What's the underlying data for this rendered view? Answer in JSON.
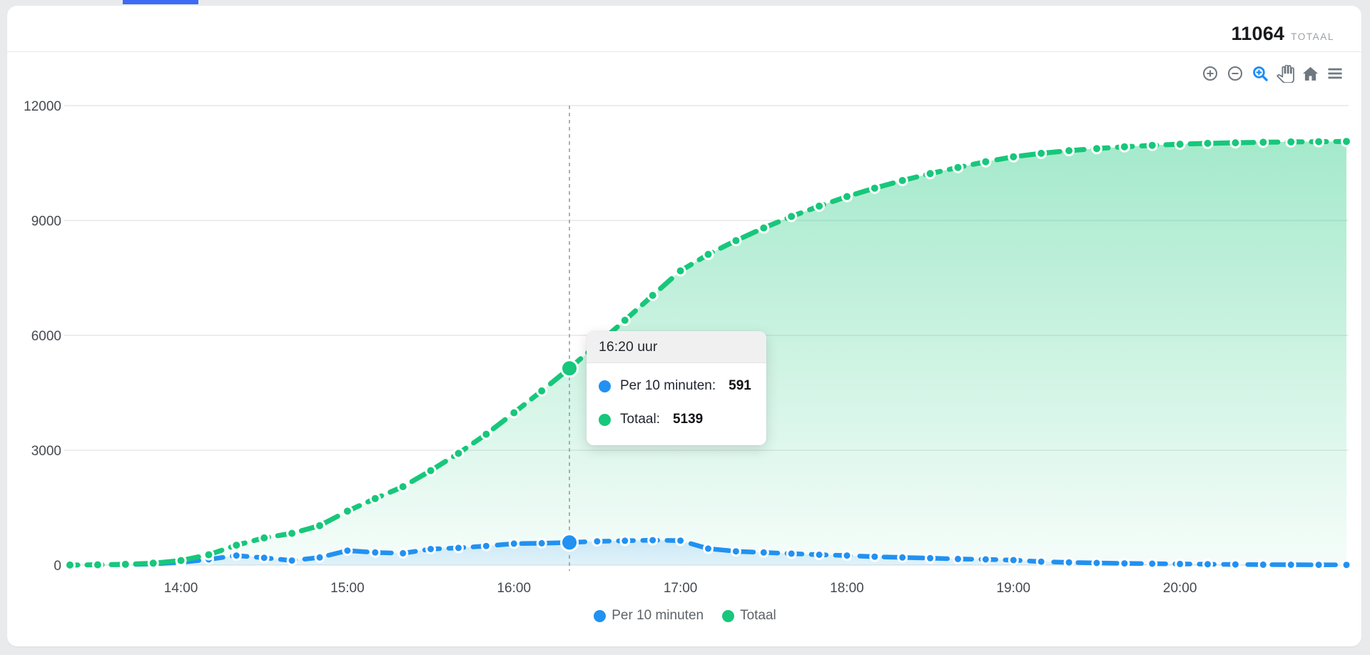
{
  "header": {
    "total_value": "11064",
    "total_label": "TOTAAL"
  },
  "toolbar": {
    "active_color": "#1a8cf8",
    "idle_color": "#6f7780"
  },
  "tooltip": {
    "title": "16:20 uur",
    "rows": [
      {
        "label": "Per 10 minuten:",
        "value": "591",
        "color": "#2191f2"
      },
      {
        "label": "Totaal:",
        "value": "5139",
        "color": "#17c77b"
      }
    ]
  },
  "legend": {
    "items": [
      {
        "label": "Per 10 minuten",
        "color": "#2191f2"
      },
      {
        "label": "Totaal",
        "color": "#17c77b"
      }
    ]
  },
  "chart_data": {
    "type": "area",
    "x": [
      "13:20",
      "13:30",
      "13:40",
      "13:50",
      "14:00",
      "14:10",
      "14:20",
      "14:30",
      "14:40",
      "14:50",
      "15:00",
      "15:10",
      "15:20",
      "15:30",
      "15:40",
      "15:50",
      "16:00",
      "16:10",
      "16:20",
      "16:30",
      "16:40",
      "16:50",
      "17:00",
      "17:10",
      "17:20",
      "17:30",
      "17:40",
      "17:50",
      "18:00",
      "18:10",
      "18:20",
      "18:30",
      "18:40",
      "18:50",
      "19:00",
      "19:10",
      "19:20",
      "19:30",
      "19:40",
      "19:50",
      "20:00",
      "20:10",
      "20:20",
      "20:30",
      "20:40",
      "20:50",
      "21:00"
    ],
    "series": [
      {
        "name": "Per 10 minuten",
        "color": "#2191f2",
        "values": [
          2,
          6,
          12,
          30,
          70,
          150,
          250,
          190,
          120,
          200,
          378,
          330,
          310,
          420,
          450,
          500,
          560,
          570,
          591,
          620,
          635,
          650,
          640,
          430,
          360,
          330,
          300,
          270,
          250,
          220,
          200,
          180,
          160,
          150,
          130,
          90,
          70,
          55,
          45,
          38,
          30,
          22,
          16,
          12,
          9,
          7,
          6
        ]
      },
      {
        "name": "Totaal",
        "color": "#17c77b",
        "values": [
          2,
          8,
          20,
          50,
          120,
          270,
          520,
          710,
          830,
          1030,
          1408,
          1738,
          2048,
          2468,
          2918,
          3418,
          3978,
          4548,
          5139,
          5759,
          6394,
          7044,
          7684,
          8114,
          8474,
          8804,
          9104,
          9374,
          9624,
          9844,
          10044,
          10224,
          10384,
          10534,
          10664,
          10754,
          10824,
          10879,
          10924,
          10962,
          10992,
          11014,
          11030,
          11042,
          11051,
          11058,
          11064
        ]
      }
    ],
    "x_ticks": [
      "14:00",
      "15:00",
      "16:00",
      "17:00",
      "18:00",
      "19:00",
      "20:00"
    ],
    "y_ticks": [
      0,
      3000,
      6000,
      9000,
      12000
    ],
    "ylim": [
      0,
      12000
    ],
    "grid": "horizontal",
    "legend_position": "bottom",
    "highlight": {
      "x": "16:20",
      "per_10_minuten": 591,
      "totaal": 5139
    }
  },
  "colors": {
    "grid": "#e7e7e9",
    "axis_text": "#45494e",
    "guide_line": "#8a9097",
    "page_bg": "#e9eaec",
    "card_bg": "#ffffff",
    "accent_strip": "#3d6bf5",
    "tooltip_header_bg": "#f0f0f1"
  }
}
